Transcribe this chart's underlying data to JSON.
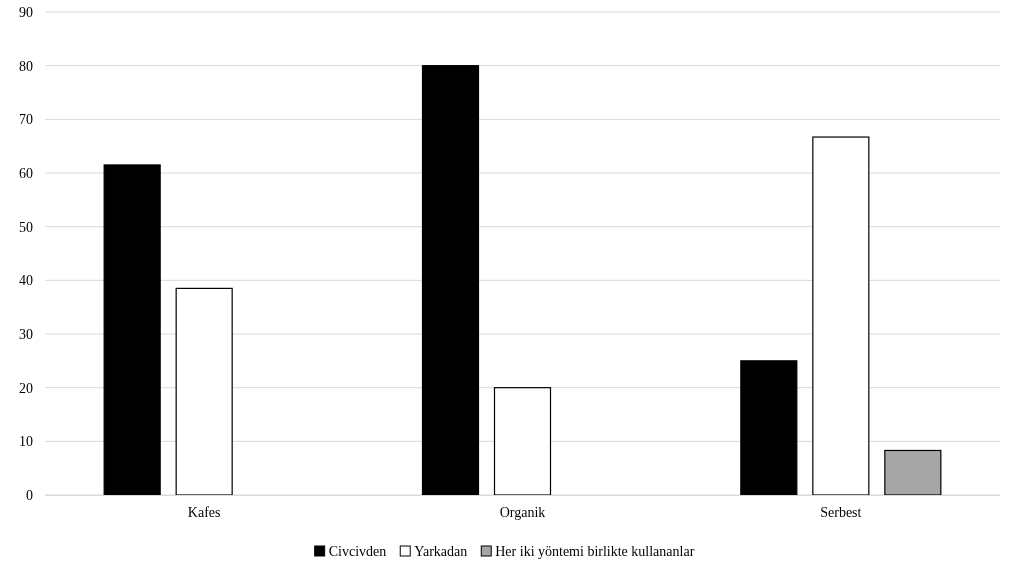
{
  "chart_data": {
    "type": "bar",
    "categories": [
      "Kafes",
      "Organik",
      "Serbest"
    ],
    "series": [
      {
        "name": "Civcivden",
        "color": "#000000",
        "values": [
          61.5,
          80,
          25
        ]
      },
      {
        "name": "Yarkadan",
        "color": "#ffffff",
        "values": [
          38.5,
          20,
          66.7
        ]
      },
      {
        "name": "Her iki yöntemi birlikte kullananlar",
        "color": "#a6a6a6",
        "values": [
          0,
          0,
          8.3
        ]
      }
    ],
    "ylim": [
      0,
      90
    ],
    "yticks": [
      0,
      10,
      20,
      30,
      40,
      50,
      60,
      70,
      80,
      90
    ],
    "grid": "y",
    "legend": "bottom"
  }
}
